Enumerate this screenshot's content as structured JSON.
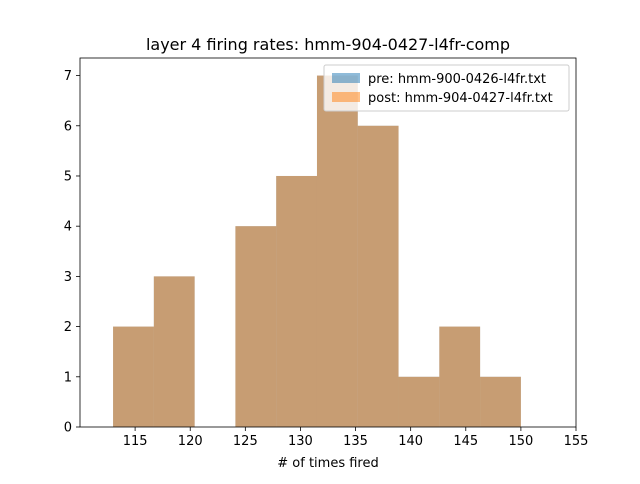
{
  "chart_data": {
    "type": "bar",
    "title": "layer 4 firing rates: hmm-904-0427-l4fr-comp",
    "xlabel": "# of times fired",
    "ylabel": "",
    "xlim": [
      110.0,
      155.0
    ],
    "ylim": [
      0,
      7.35
    ],
    "xticks": [
      115,
      120,
      125,
      130,
      135,
      140,
      145,
      150,
      155
    ],
    "yticks": [
      0,
      1,
      2,
      3,
      4,
      5,
      6,
      7
    ],
    "grid": false,
    "legend_position": "top-right",
    "series": [
      {
        "name": "pre: hmm-900-0426-l4fr.txt",
        "color": "#1f77b4",
        "opacity": 0.5,
        "bin_edges": [
          113.0,
          116.7,
          120.4,
          124.1,
          127.8,
          131.5,
          135.2,
          138.9,
          142.6,
          146.3,
          150.0
        ],
        "values": [
          2,
          3,
          0,
          4,
          5,
          7,
          6,
          1,
          2,
          1
        ]
      },
      {
        "name": "post: hmm-904-0427-l4fr.txt",
        "color": "#ff7f0e",
        "opacity": 0.5,
        "bin_edges": [
          113.0,
          116.7,
          120.4,
          124.1,
          127.8,
          131.5,
          135.2,
          138.9,
          142.6,
          146.3,
          150.0
        ],
        "values": [
          2,
          3,
          0,
          4,
          5,
          7,
          6,
          1,
          2,
          1
        ]
      }
    ]
  }
}
